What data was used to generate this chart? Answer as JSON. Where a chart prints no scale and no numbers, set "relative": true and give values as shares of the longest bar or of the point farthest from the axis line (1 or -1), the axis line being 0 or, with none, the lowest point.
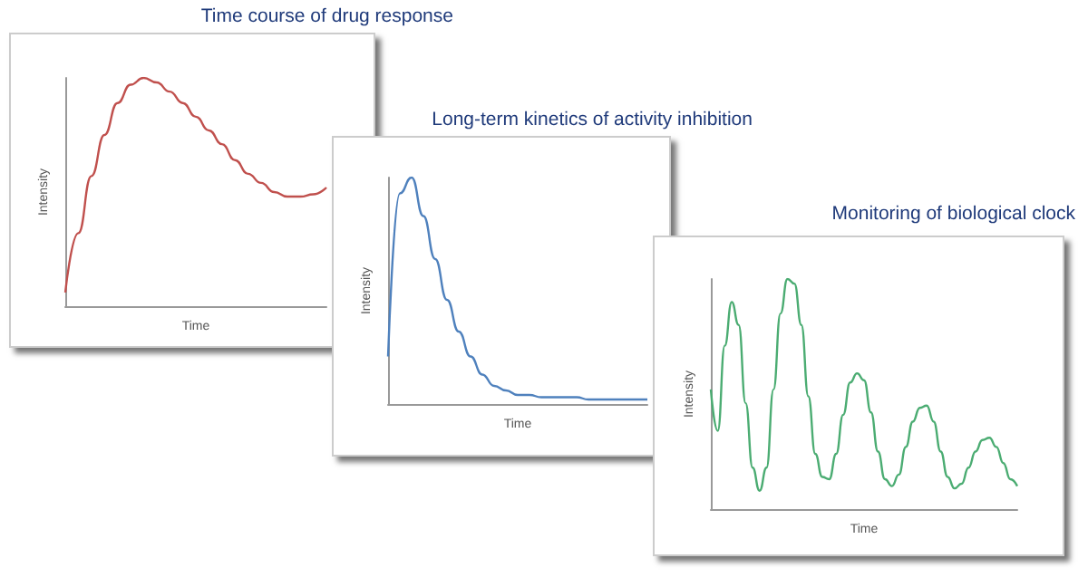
{
  "chart_data": [
    {
      "type": "line",
      "title": "Time course of drug response",
      "xlabel": "Time",
      "ylabel": "Intensity",
      "relative": true,
      "tick_labels": false,
      "grid": false,
      "categories": [
        null,
        null,
        null,
        null,
        null,
        null,
        null,
        null,
        null,
        null,
        null,
        null,
        null,
        null,
        null,
        null,
        null,
        null,
        null,
        null,
        null
      ],
      "series": [
        {
          "color": "#c0504d",
          "values": [
            0.06,
            0.32,
            0.57,
            0.75,
            0.89,
            0.97,
            1.0,
            0.98,
            0.94,
            0.89,
            0.83,
            0.77,
            0.71,
            0.64,
            0.58,
            0.54,
            0.5,
            0.48,
            0.48,
            0.49,
            0.52
          ]
        }
      ]
    },
    {
      "type": "line",
      "title": "Long-term kinetics of activity inhibition",
      "xlabel": "Time",
      "ylabel": "Intensity",
      "relative": true,
      "tick_labels": false,
      "grid": false,
      "categories": [
        null,
        null,
        null,
        null,
        null,
        null,
        null,
        null,
        null,
        null,
        null,
        null,
        null,
        null,
        null,
        null,
        null,
        null,
        null,
        null,
        null,
        null,
        null
      ],
      "series": [
        {
          "color": "#4f81bd",
          "values": [
            0.21,
            0.93,
            1.0,
            0.83,
            0.64,
            0.46,
            0.32,
            0.21,
            0.13,
            0.08,
            0.06,
            0.04,
            0.04,
            0.03,
            0.03,
            0.03,
            0.03,
            0.02,
            0.02,
            0.02,
            0.02,
            0.02,
            0.02
          ]
        }
      ]
    },
    {
      "type": "line",
      "title": "Monitoring of biological clock",
      "xlabel": "Time",
      "ylabel": "Intensity",
      "relative": true,
      "tick_labels": false,
      "grid": false,
      "categories": [
        null,
        null,
        null,
        null,
        null,
        null,
        null,
        null,
        null,
        null,
        null,
        null,
        null,
        null,
        null,
        null,
        null,
        null,
        null,
        null,
        null,
        null,
        null,
        null,
        null,
        null,
        null,
        null,
        null,
        null,
        null,
        null,
        null,
        null,
        null,
        null,
        null,
        null,
        null,
        null,
        null,
        null,
        null,
        null,
        null
      ],
      "series": [
        {
          "color": "#4bac72",
          "values": [
            0.52,
            0.34,
            0.71,
            0.9,
            0.8,
            0.46,
            0.18,
            0.08,
            0.18,
            0.52,
            0.85,
            1.0,
            0.98,
            0.8,
            0.49,
            0.24,
            0.14,
            0.13,
            0.24,
            0.41,
            0.55,
            0.59,
            0.56,
            0.42,
            0.25,
            0.13,
            0.1,
            0.15,
            0.27,
            0.38,
            0.44,
            0.45,
            0.38,
            0.25,
            0.14,
            0.09,
            0.11,
            0.18,
            0.25,
            0.3,
            0.31,
            0.27,
            0.2,
            0.13,
            0.1
          ]
        }
      ]
    }
  ]
}
